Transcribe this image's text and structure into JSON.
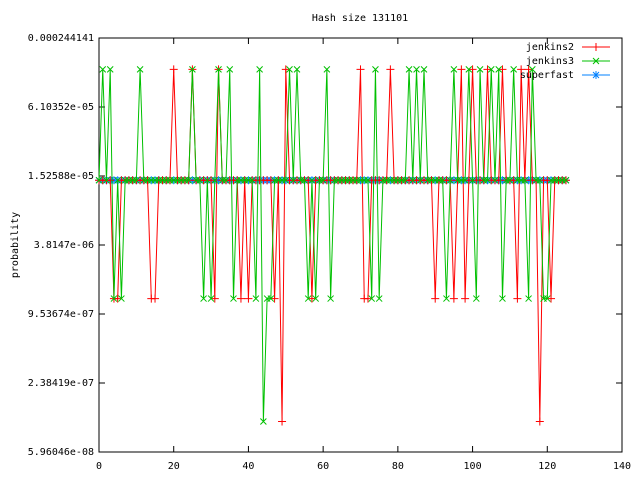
{
  "chart_data": {
    "type": "line",
    "title": "Hash size 131101",
    "y_label": "probability",
    "logscale_y": true,
    "grid": false,
    "legend": "top-right",
    "xlim": [
      0,
      140
    ],
    "xticks": [
      0,
      20,
      40,
      60,
      80,
      100,
      120,
      140
    ],
    "ylim": [
      5.96046e-08,
      0.000244141
    ],
    "yticks": [
      {
        "value": 5.96046e-08,
        "label": "5.96046e-08"
      },
      {
        "value": 2.38419e-07,
        "label": "2.38419e-07"
      },
      {
        "value": 9.53674e-07,
        "label": "9.53674e-07"
      },
      {
        "value": 3.8147e-06,
        "label": "3.8147e-06"
      },
      {
        "value": 1.52588e-05,
        "label": "1.52588e-05"
      },
      {
        "value": 6.10352e-05,
        "label": "6.10352e-05"
      },
      0.000244141
    ],
    "x": [
      0,
      1,
      2,
      3,
      4,
      5,
      6,
      7,
      8,
      9,
      10,
      11,
      12,
      13,
      14,
      15,
      16,
      17,
      18,
      19,
      20,
      21,
      22,
      23,
      24,
      25,
      26,
      27,
      28,
      29,
      30,
      31,
      32,
      33,
      34,
      35,
      36,
      37,
      38,
      39,
      40,
      41,
      42,
      43,
      44,
      45,
      46,
      47,
      48,
      49,
      50,
      51,
      52,
      53,
      54,
      55,
      56,
      57,
      58,
      59,
      60,
      61,
      62,
      63,
      64,
      65,
      66,
      67,
      68,
      69,
      70,
      71,
      72,
      73,
      74,
      75,
      76,
      77,
      78,
      79,
      80,
      81,
      82,
      83,
      84,
      85,
      86,
      87,
      88,
      89,
      90,
      91,
      92,
      93,
      94,
      95,
      96,
      97,
      98,
      99,
      100,
      101,
      102,
      103,
      104,
      105,
      106,
      107,
      108,
      109,
      110,
      111,
      112,
      113,
      114,
      115,
      116,
      117,
      118,
      119,
      120,
      121,
      122,
      123,
      124,
      125
    ],
    "series": [
      {
        "name": "jenkins2",
        "color": "#ff0000",
        "marker": "plus",
        "values": [
          1.4e-05,
          1.4e-05,
          1.4e-05,
          1.4e-05,
          1.3e-06,
          1.3e-06,
          1.4e-05,
          1.4e-05,
          1.4e-05,
          1.4e-05,
          1.4e-05,
          1.4e-05,
          1.4e-05,
          1.4e-05,
          1.3e-06,
          1.3e-06,
          1.4e-05,
          1.4e-05,
          1.4e-05,
          1.4e-05,
          0.00013,
          1.4e-05,
          1.4e-05,
          1.4e-05,
          1.4e-05,
          0.00013,
          1.4e-05,
          1.4e-05,
          1.4e-05,
          1.4e-05,
          1.4e-05,
          1.3e-06,
          0.00013,
          1.4e-05,
          1.4e-05,
          1.4e-05,
          1.4e-05,
          1.4e-05,
          1.3e-06,
          1.4e-05,
          1.3e-06,
          1.4e-05,
          1.4e-05,
          1.4e-05,
          1.4e-05,
          1.4e-05,
          1.4e-05,
          1.3e-06,
          1.4e-05,
          1.1e-07,
          0.00013,
          1.4e-05,
          1.4e-05,
          1.4e-05,
          1.4e-05,
          1.4e-05,
          1.4e-05,
          1.3e-06,
          1.4e-05,
          1.4e-05,
          1.4e-05,
          1.4e-05,
          1.4e-05,
          1.4e-05,
          1.4e-05,
          1.4e-05,
          1.4e-05,
          1.4e-05,
          1.4e-05,
          1.4e-05,
          0.00013,
          1.3e-06,
          1.3e-06,
          1.4e-05,
          1.4e-05,
          1.4e-05,
          1.4e-05,
          1.4e-05,
          0.00013,
          1.4e-05,
          1.4e-05,
          1.4e-05,
          1.4e-05,
          1.4e-05,
          1.4e-05,
          1.4e-05,
          1.4e-05,
          1.4e-05,
          1.4e-05,
          1.4e-05,
          1.3e-06,
          1.4e-05,
          1.4e-05,
          1.4e-05,
          1.4e-05,
          1.3e-06,
          1.4e-05,
          0.00013,
          1.3e-06,
          1.4e-05,
          0.00013,
          1.4e-05,
          1.4e-05,
          1.4e-05,
          0.00013,
          1.4e-05,
          1.4e-05,
          1.4e-05,
          0.00013,
          1.4e-05,
          1.4e-05,
          1.4e-05,
          1.3e-06,
          0.00013,
          1.4e-05,
          0.00013,
          1.4e-05,
          1.4e-05,
          1.1e-07,
          1.4e-05,
          1.4e-05,
          1.3e-06,
          1.4e-05,
          1.4e-05,
          1.4e-05,
          1.4e-05
        ]
      },
      {
        "name": "jenkins3",
        "color": "#00c000",
        "marker": "cross",
        "values": [
          1.4e-05,
          0.00013,
          1.4e-05,
          0.00013,
          1.3e-06,
          1.4e-05,
          1.3e-06,
          1.4e-05,
          1.4e-05,
          1.4e-05,
          1.4e-05,
          0.00013,
          1.4e-05,
          1.4e-05,
          1.4e-05,
          1.4e-05,
          1.4e-05,
          1.4e-05,
          1.4e-05,
          1.4e-05,
          1.4e-05,
          1.4e-05,
          1.4e-05,
          1.4e-05,
          1.4e-05,
          0.00013,
          1.4e-05,
          1.4e-05,
          1.3e-06,
          1.4e-05,
          1.3e-06,
          1.4e-05,
          0.00013,
          1.4e-05,
          1.4e-05,
          0.00013,
          1.3e-06,
          1.4e-05,
          1.4e-05,
          1.4e-05,
          1.4e-05,
          1.4e-05,
          1.3e-06,
          0.00013,
          1.1e-07,
          1.3e-06,
          1.3e-06,
          1.4e-05,
          1.4e-05,
          1.4e-05,
          1.4e-05,
          0.00013,
          1.4e-05,
          0.00013,
          1.4e-05,
          1.4e-05,
          1.3e-06,
          1.4e-05,
          1.3e-06,
          1.4e-05,
          1.4e-05,
          0.00013,
          1.3e-06,
          1.4e-05,
          1.4e-05,
          1.4e-05,
          1.4e-05,
          1.4e-05,
          1.4e-05,
          1.4e-05,
          1.4e-05,
          1.4e-05,
          1.4e-05,
          1.3e-06,
          0.00013,
          1.3e-06,
          1.4e-05,
          1.4e-05,
          1.4e-05,
          1.4e-05,
          1.4e-05,
          1.4e-05,
          1.4e-05,
          0.00013,
          1.4e-05,
          0.00013,
          1.4e-05,
          0.00013,
          1.4e-05,
          1.4e-05,
          1.4e-05,
          1.4e-05,
          1.4e-05,
          1.3e-06,
          1.4e-05,
          0.00013,
          1.4e-05,
          1.4e-05,
          1.4e-05,
          0.00013,
          1.4e-05,
          1.3e-06,
          0.00013,
          1.4e-05,
          1.4e-05,
          0.00013,
          1.4e-05,
          0.00013,
          1.3e-06,
          1.4e-05,
          1.4e-05,
          0.00013,
          1.4e-05,
          1.4e-05,
          1.4e-05,
          1.3e-06,
          0.00013,
          1.4e-05,
          1.4e-05,
          1.3e-06,
          1.3e-06,
          1.4e-05,
          1.4e-05,
          1.4e-05,
          1.4e-05,
          1.4e-05
        ]
      },
      {
        "name": "superfast",
        "color": "#0080ff",
        "marker": "star",
        "values": [
          1.4e-05,
          1.4e-05,
          1.4e-05,
          1.4e-05,
          1.4e-05,
          1.4e-05,
          1.4e-05,
          1.4e-05,
          1.4e-05,
          1.4e-05,
          1.4e-05,
          1.4e-05,
          1.4e-05,
          1.4e-05,
          1.4e-05,
          1.4e-05,
          1.4e-05,
          1.4e-05,
          1.4e-05,
          1.4e-05,
          1.4e-05,
          1.4e-05,
          1.4e-05,
          1.4e-05,
          1.4e-05,
          1.4e-05,
          1.4e-05,
          1.4e-05,
          1.4e-05,
          1.4e-05,
          1.4e-05,
          1.4e-05,
          1.4e-05,
          1.4e-05,
          1.4e-05,
          1.4e-05,
          1.4e-05,
          1.4e-05,
          1.4e-05,
          1.4e-05,
          1.4e-05,
          1.4e-05,
          1.4e-05,
          1.4e-05,
          1.4e-05,
          1.4e-05,
          1.4e-05,
          1.4e-05,
          1.4e-05,
          1.4e-05,
          1.4e-05,
          1.4e-05,
          1.4e-05,
          1.4e-05,
          1.4e-05,
          1.4e-05,
          1.4e-05,
          1.4e-05,
          1.4e-05,
          1.4e-05,
          1.4e-05,
          1.4e-05,
          1.4e-05,
          1.4e-05,
          1.4e-05,
          1.4e-05,
          1.4e-05,
          1.4e-05,
          1.4e-05,
          1.4e-05,
          1.4e-05,
          1.4e-05,
          1.4e-05,
          1.4e-05,
          1.4e-05,
          1.4e-05,
          1.4e-05,
          1.4e-05,
          1.4e-05,
          1.4e-05,
          1.4e-05,
          1.4e-05,
          1.4e-05,
          1.4e-05,
          1.4e-05,
          1.4e-05,
          1.4e-05,
          1.4e-05,
          1.4e-05,
          1.4e-05,
          1.4e-05,
          1.4e-05,
          1.4e-05,
          1.4e-05,
          1.4e-05,
          1.4e-05,
          1.4e-05,
          1.4e-05,
          1.4e-05,
          1.4e-05,
          1.4e-05,
          1.4e-05,
          1.4e-05,
          1.4e-05,
          1.4e-05,
          1.4e-05,
          1.4e-05,
          1.4e-05,
          1.4e-05,
          1.4e-05,
          1.4e-05,
          1.4e-05,
          1.4e-05,
          1.4e-05,
          1.4e-05,
          1.4e-05,
          1.4e-05,
          1.4e-05,
          1.4e-05,
          1.4e-05,
          1.4e-05,
          1.4e-05,
          1.4e-05,
          1.4e-05,
          1.4e-05,
          1.4e-05
        ]
      }
    ]
  }
}
